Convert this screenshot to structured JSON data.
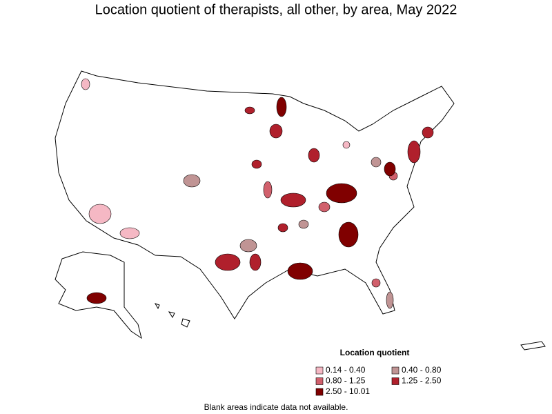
{
  "title": "Location quotient of therapists, all other, by area, May 2022",
  "legend": {
    "title": "Location quotient",
    "items": [
      {
        "label": "0.14 - 0.40",
        "color": "#f5b8c4"
      },
      {
        "label": "0.40 - 0.80",
        "color": "#c09494"
      },
      {
        "label": "0.80 - 1.25",
        "color": "#d1606c"
      },
      {
        "label": "1.25 - 2.50",
        "color": "#b0202c"
      },
      {
        "label": "2.50 - 10.01",
        "color": "#800000"
      }
    ]
  },
  "footnote": "Blank areas indicate data not available."
}
